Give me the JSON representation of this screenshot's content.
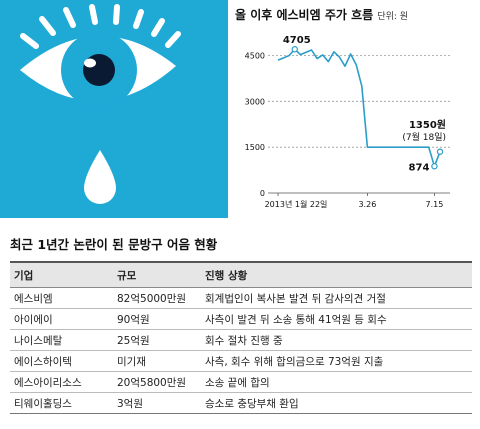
{
  "colors": {
    "background_blue": "#1faad6",
    "line": "#2a9ec9",
    "text": "#111111"
  },
  "illustration": {
    "icons": [
      "eye-icon",
      "tear-drop-icon"
    ]
  },
  "chart_data": {
    "type": "line",
    "title": "올 이후 에스비엠 주가 흐름",
    "unit_label": "단위: 원",
    "x_tick_labels": [
      "2013년 1월 22일",
      "3.26",
      "7.15"
    ],
    "y_ticks": [
      0,
      1500,
      3000,
      4500
    ],
    "ylim": [
      0,
      5400
    ],
    "grid": "horizontal",
    "series": [
      {
        "values": [
          4350,
          4420,
          4500,
          4705,
          4530,
          4600,
          4680,
          4400,
          4520,
          4300,
          4620,
          4450,
          4150,
          4550,
          4200,
          3500,
          1500,
          1500,
          1500,
          1500,
          1500,
          1500,
          1500,
          1500,
          1500,
          1500,
          1500,
          1500,
          874,
          1350
        ]
      }
    ],
    "annotations": [
      {
        "label": "4705",
        "value": 4705
      },
      {
        "label": "1350원",
        "sublabel": "(7월 18일)",
        "value": 1350
      },
      {
        "label": "874",
        "value": 874
      }
    ]
  },
  "table": {
    "title": "최근 1년간 논란이 된 문방구 어음 현황",
    "headers": [
      "기업",
      "규모",
      "진행 상황"
    ],
    "rows": [
      [
        "에스비엠",
        "82억5000만원",
        "회계법인이 복사본 발견 뒤 감사의견 거절"
      ],
      [
        "아이에이",
        "90억원",
        "사측이 발견 뒤 소송 통해 41억원 등 회수"
      ],
      [
        "나이스메탈",
        "25억원",
        "회수 절차 진행 중"
      ],
      [
        "에이스하이텍",
        "미기재",
        "사측, 회수 위해 합의금으로 73억원 지출"
      ],
      [
        "에스아이리소스",
        "20억5800만원",
        "소송 끝에 합의"
      ],
      [
        "티웨이홀딩스",
        "3억원",
        "승소로 충당부채 환입"
      ]
    ]
  }
}
